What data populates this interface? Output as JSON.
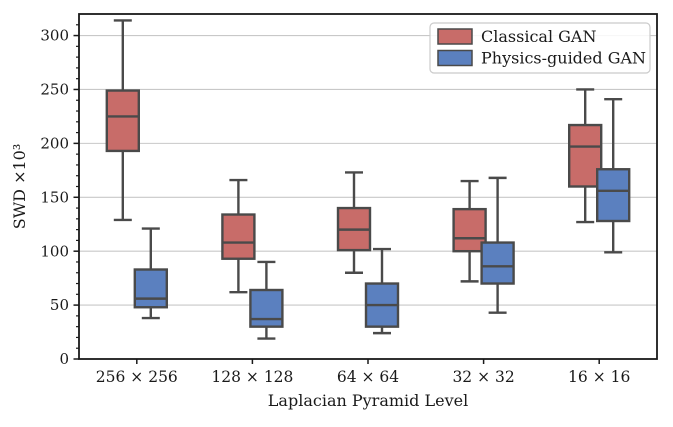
{
  "figure": {
    "background": "#ffffff"
  },
  "chart_data": {
    "type": "boxplot",
    "title": "",
    "xlabel": "Laplacian Pyramid Level",
    "ylabel": "SWD ×10³",
    "categories": [
      "256 × 256",
      "128 × 128",
      "64 × 64",
      "32 × 32",
      "16 × 16"
    ],
    "ylim": [
      0,
      320
    ],
    "yticks": [
      0,
      50,
      100,
      150,
      200,
      250,
      300
    ],
    "minor_tick_step": 10,
    "grid": "horizontal",
    "grid_color": "#c8c8c8",
    "legend_position": "upper right",
    "axis_color": "#1a1a1a",
    "box_edge_color": "#4a4a4a",
    "series": [
      {
        "name": "Classical GAN",
        "fill": "#c86c69",
        "boxes": [
          {
            "whislo": 129,
            "q1": 193,
            "med": 225,
            "q3": 249,
            "whishi": 314
          },
          {
            "whislo": 62,
            "q1": 93,
            "med": 108,
            "q3": 134,
            "whishi": 166
          },
          {
            "whislo": 80,
            "q1": 101,
            "med": 120,
            "q3": 140,
            "whishi": 173
          },
          {
            "whislo": 72,
            "q1": 100,
            "med": 112,
            "q3": 139,
            "whishi": 165
          },
          {
            "whislo": 127,
            "q1": 160,
            "med": 197,
            "q3": 217,
            "whishi": 250
          }
        ]
      },
      {
        "name": "Physics-guided GAN",
        "fill": "#5b80bf",
        "boxes": [
          {
            "whislo": 38,
            "q1": 48,
            "med": 56,
            "q3": 83,
            "whishi": 121
          },
          {
            "whislo": 19,
            "q1": 30,
            "med": 37,
            "q3": 64,
            "whishi": 90
          },
          {
            "whislo": 24,
            "q1": 30,
            "med": 50,
            "q3": 70,
            "whishi": 102
          },
          {
            "whislo": 43,
            "q1": 70,
            "med": 86,
            "q3": 108,
            "whishi": 168
          },
          {
            "whislo": 99,
            "q1": 128,
            "med": 156,
            "q3": 176,
            "whishi": 241
          }
        ]
      }
    ],
    "legend": {
      "entries": [
        {
          "label": "Classical GAN",
          "color": "#c86c69"
        },
        {
          "label": "Physics-guided GAN",
          "color": "#5b80bf"
        }
      ]
    }
  }
}
